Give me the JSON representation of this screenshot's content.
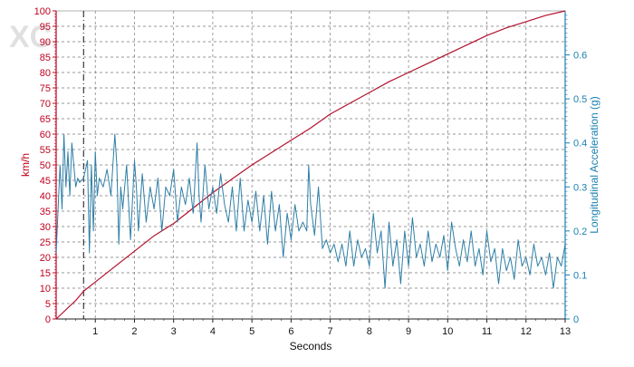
{
  "watermark": {
    "text": "XCAR 爱卡",
    "color": "#c8c8c8"
  },
  "chart_data": {
    "type": "line",
    "title": "",
    "xlabel": "Seconds",
    "ylabel_left": "km/h",
    "ylabel_right": "Longitudinal Acceleration (g)",
    "xlim": [
      0,
      13
    ],
    "ylim_left": [
      0,
      100
    ],
    "ylim_right": [
      0,
      0.7
    ],
    "x_ticks": [
      1,
      2,
      3,
      4,
      5,
      6,
      7,
      8,
      9,
      10,
      11,
      12,
      13
    ],
    "y_left_ticks": [
      0,
      5,
      10,
      15,
      20,
      25,
      30,
      35,
      40,
      45,
      50,
      55,
      60,
      65,
      70,
      75,
      80,
      85,
      90,
      95,
      100
    ],
    "y_right_ticks": [
      0,
      0.1,
      0.2,
      0.3,
      0.4,
      0.5,
      0.6
    ],
    "grid": true,
    "left_axis_color": "#c0001e",
    "right_axis_color": "#1a80b0",
    "marker_line_x": 0.7,
    "series": [
      {
        "axis": "left",
        "color": "#b3112e",
        "x": [
          0,
          0.5,
          0.7,
          1,
          1.5,
          2,
          2.5,
          3,
          3.5,
          4,
          4.5,
          5,
          5.5,
          6,
          6.5,
          7,
          7.5,
          8,
          8.5,
          9,
          9.5,
          10,
          10.5,
          11,
          11.5,
          12,
          12.5,
          13
        ],
        "values": [
          0,
          6,
          9,
          12,
          17,
          22,
          27,
          31,
          36,
          41,
          45.5,
          50,
          54,
          58,
          62,
          66.5,
          70,
          73.5,
          77,
          80,
          83,
          86,
          89,
          92,
          94.5,
          96.5,
          98.5,
          100
        ]
      },
      {
        "axis": "right",
        "color": "#2e7fa6",
        "x": [
          0,
          0.1,
          0.15,
          0.2,
          0.25,
          0.3,
          0.35,
          0.4,
          0.5,
          0.55,
          0.6,
          0.7,
          0.8,
          0.85,
          0.9,
          0.95,
          1.0,
          1.05,
          1.1,
          1.2,
          1.3,
          1.4,
          1.5,
          1.55,
          1.6,
          1.65,
          1.7,
          1.8,
          1.9,
          2.0,
          2.05,
          2.1,
          2.2,
          2.3,
          2.4,
          2.5,
          2.6,
          2.7,
          2.8,
          2.9,
          3.0,
          3.1,
          3.2,
          3.3,
          3.4,
          3.5,
          3.6,
          3.65,
          3.7,
          3.8,
          3.9,
          4.0,
          4.1,
          4.2,
          4.3,
          4.4,
          4.5,
          4.6,
          4.7,
          4.8,
          4.9,
          5.0,
          5.1,
          5.2,
          5.3,
          5.4,
          5.5,
          5.6,
          5.7,
          5.8,
          5.9,
          6.0,
          6.1,
          6.2,
          6.3,
          6.4,
          6.45,
          6.5,
          6.6,
          6.7,
          6.8,
          6.9,
          7.0,
          7.1,
          7.2,
          7.3,
          7.4,
          7.5,
          7.6,
          7.7,
          7.8,
          7.9,
          8.0,
          8.1,
          8.2,
          8.3,
          8.4,
          8.5,
          8.6,
          8.7,
          8.8,
          8.9,
          9.0,
          9.1,
          9.2,
          9.3,
          9.4,
          9.5,
          9.6,
          9.7,
          9.8,
          9.9,
          10.0,
          10.1,
          10.2,
          10.3,
          10.4,
          10.5,
          10.6,
          10.7,
          10.8,
          10.9,
          11.0,
          11.1,
          11.2,
          11.3,
          11.4,
          11.5,
          11.6,
          11.7,
          11.8,
          11.9,
          12.0,
          12.1,
          12.2,
          12.3,
          12.4,
          12.5,
          12.6,
          12.7,
          12.8,
          12.9,
          13.0
        ],
        "values": [
          0.15,
          0.35,
          0.25,
          0.42,
          0.3,
          0.38,
          0.28,
          0.4,
          0.3,
          0.32,
          0.31,
          0.32,
          0.36,
          0.15,
          0.35,
          0.2,
          0.38,
          0.28,
          0.32,
          0.3,
          0.34,
          0.28,
          0.42,
          0.35,
          0.17,
          0.3,
          0.25,
          0.35,
          0.18,
          0.36,
          0.3,
          0.2,
          0.33,
          0.22,
          0.3,
          0.25,
          0.32,
          0.2,
          0.3,
          0.28,
          0.34,
          0.22,
          0.3,
          0.26,
          0.32,
          0.24,
          0.4,
          0.28,
          0.22,
          0.35,
          0.25,
          0.3,
          0.24,
          0.33,
          0.26,
          0.22,
          0.3,
          0.2,
          0.32,
          0.2,
          0.27,
          0.22,
          0.29,
          0.2,
          0.28,
          0.17,
          0.29,
          0.2,
          0.26,
          0.14,
          0.24,
          0.18,
          0.26,
          0.2,
          0.22,
          0.2,
          0.35,
          0.26,
          0.19,
          0.3,
          0.16,
          0.18,
          0.15,
          0.17,
          0.13,
          0.17,
          0.12,
          0.2,
          0.12,
          0.18,
          0.14,
          0.16,
          0.12,
          0.24,
          0.15,
          0.2,
          0.07,
          0.22,
          0.12,
          0.18,
          0.08,
          0.2,
          0.12,
          0.23,
          0.14,
          0.17,
          0.12,
          0.2,
          0.13,
          0.17,
          0.14,
          0.19,
          0.11,
          0.22,
          0.16,
          0.12,
          0.18,
          0.13,
          0.2,
          0.12,
          0.16,
          0.1,
          0.2,
          0.13,
          0.16,
          0.08,
          0.16,
          0.11,
          0.14,
          0.09,
          0.18,
          0.12,
          0.14,
          0.1,
          0.17,
          0.12,
          0.14,
          0.1,
          0.15,
          0.07,
          0.14,
          0.12,
          0.17
        ]
      }
    ]
  }
}
